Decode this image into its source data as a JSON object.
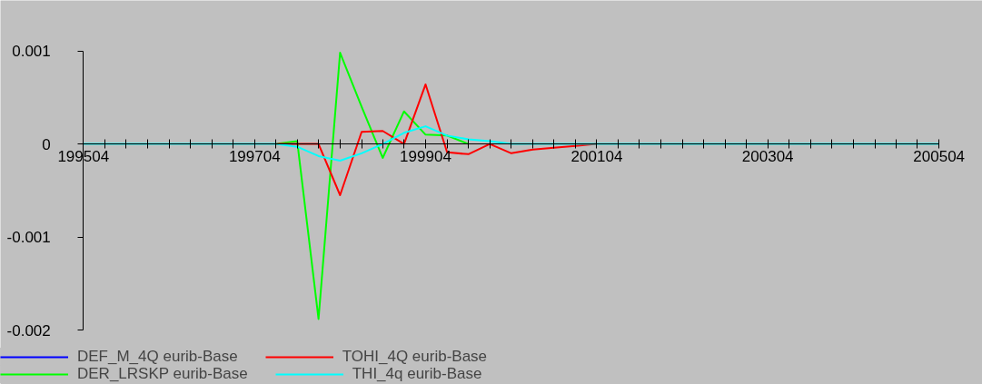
{
  "chart_data": {
    "type": "line",
    "x": [
      "1995-10",
      "1996-01",
      "1996-04",
      "1996-07",
      "1996-10",
      "1997-01",
      "1997-04",
      "1997-07",
      "1997-10",
      "1998-01",
      "1998-04",
      "1998-07",
      "1998-10",
      "1999-01",
      "1999-04",
      "1999-07",
      "1999-10",
      "2000-01",
      "2000-04",
      "2000-07",
      "2000-10",
      "2001-01",
      "2001-04",
      "2001-07",
      "2001-10",
      "2002-01",
      "2002-04",
      "2002-07",
      "2002-10",
      "2003-01",
      "2003-04",
      "2003-07",
      "2003-10",
      "2004-01",
      "2004-04",
      "2004-07",
      "2004-10",
      "2005-01",
      "2005-04",
      "2005-07",
      "2005-10"
    ],
    "series": [
      {
        "name": "DEF_M_4Q eurib-Base",
        "color": "#0000ff",
        "values": [
          null,
          null,
          null,
          null,
          null,
          null,
          null,
          null,
          null,
          null,
          null,
          null,
          null,
          null,
          null,
          null,
          null,
          null,
          null,
          null,
          null,
          null,
          null,
          null,
          null,
          null,
          null,
          null,
          null,
          null,
          null,
          null,
          null,
          null,
          null,
          null,
          null,
          null,
          null,
          null,
          null
        ]
      },
      {
        "name": "DER_LRSKP eurib-Base",
        "color": "#00ff00",
        "values": [
          null,
          null,
          null,
          null,
          null,
          null,
          null,
          null,
          null,
          0,
          3e-05,
          -0.00188,
          0.00098,
          0.0004,
          -0.00015,
          0.00035,
          0.0001,
          9e-05,
          0,
          null,
          null,
          null,
          null,
          null,
          null,
          null,
          null,
          null,
          null,
          null,
          null,
          null,
          null,
          null,
          null,
          null,
          null,
          null,
          null,
          null,
          null
        ]
      },
      {
        "name": "TOHI_4Q eurib-Base",
        "color": "#ff0000",
        "values": [
          null,
          null,
          null,
          null,
          null,
          null,
          null,
          null,
          null,
          0,
          0,
          0,
          -0.00055,
          0.00013,
          0.00014,
          0,
          0.00064,
          -9e-05,
          -0.00011,
          0,
          -0.0001,
          -6e-05,
          -4e-05,
          -2e-05,
          0,
          null,
          null,
          null,
          null,
          null,
          null,
          null,
          null,
          null,
          null,
          null,
          null,
          null,
          null,
          null,
          null
        ]
      },
      {
        "name": "THI_4q eurib-Base",
        "color": "#00ffff",
        "values": [
          0,
          0,
          0,
          0,
          0,
          0,
          0,
          0,
          0,
          0,
          -3e-05,
          -0.00013,
          -0.00018,
          -0.0001,
          0,
          0.00012,
          0.00019,
          9e-05,
          5e-05,
          3e-05,
          0,
          0,
          0,
          0,
          0,
          0,
          0,
          0,
          0,
          0,
          0,
          0,
          0,
          0,
          0,
          0,
          0,
          0,
          0,
          0,
          0
        ]
      }
    ],
    "xlim": [
      "1995-10",
      "2005-10"
    ],
    "xticks": [
      {
        "value": "1995-10",
        "label": "199504"
      },
      {
        "value": "1996-01",
        "label": null
      },
      {
        "value": "1996-04",
        "label": null
      },
      {
        "value": "1996-07",
        "label": null
      },
      {
        "value": "1996-10",
        "label": null
      },
      {
        "value": "1997-01",
        "label": null
      },
      {
        "value": "1997-04",
        "label": null
      },
      {
        "value": "1997-07",
        "label": null
      },
      {
        "value": "1997-10",
        "label": "199704"
      },
      {
        "value": "1998-01",
        "label": null
      },
      {
        "value": "1998-04",
        "label": null
      },
      {
        "value": "1998-07",
        "label": null
      },
      {
        "value": "1998-10",
        "label": null
      },
      {
        "value": "1999-01",
        "label": null
      },
      {
        "value": "1999-04",
        "label": null
      },
      {
        "value": "1999-07",
        "label": null
      },
      {
        "value": "1999-10",
        "label": "199904"
      },
      {
        "value": "2000-01",
        "label": null
      },
      {
        "value": "2000-04",
        "label": null
      },
      {
        "value": "2000-07",
        "label": null
      },
      {
        "value": "2000-10",
        "label": null
      },
      {
        "value": "2001-01",
        "label": null
      },
      {
        "value": "2001-04",
        "label": null
      },
      {
        "value": "2001-07",
        "label": null
      },
      {
        "value": "2001-10",
        "label": "200104"
      },
      {
        "value": "2002-01",
        "label": null
      },
      {
        "value": "2002-04",
        "label": null
      },
      {
        "value": "2002-07",
        "label": null
      },
      {
        "value": "2002-10",
        "label": null
      },
      {
        "value": "2003-01",
        "label": null
      },
      {
        "value": "2003-04",
        "label": null
      },
      {
        "value": "2003-07",
        "label": null
      },
      {
        "value": "2003-10",
        "label": "200304"
      },
      {
        "value": "2004-01",
        "label": null
      },
      {
        "value": "2004-04",
        "label": null
      },
      {
        "value": "2004-07",
        "label": null
      },
      {
        "value": "2004-10",
        "label": null
      },
      {
        "value": "2005-01",
        "label": null
      },
      {
        "value": "2005-04",
        "label": null
      },
      {
        "value": "2005-07",
        "label": null
      },
      {
        "value": "2005-10",
        "label": "200504"
      }
    ],
    "ylim": [
      -0.002,
      0.001
    ],
    "yticks": [
      {
        "value": 0.001,
        "label": "0.001"
      },
      {
        "value": 0,
        "label": "0"
      },
      {
        "value": -0.001,
        "label": "-0.001"
      },
      {
        "value": -0.002,
        "label": "-0.002"
      }
    ],
    "grid": false,
    "legend": "bottom",
    "marker": "none",
    "line_style": "solid"
  }
}
